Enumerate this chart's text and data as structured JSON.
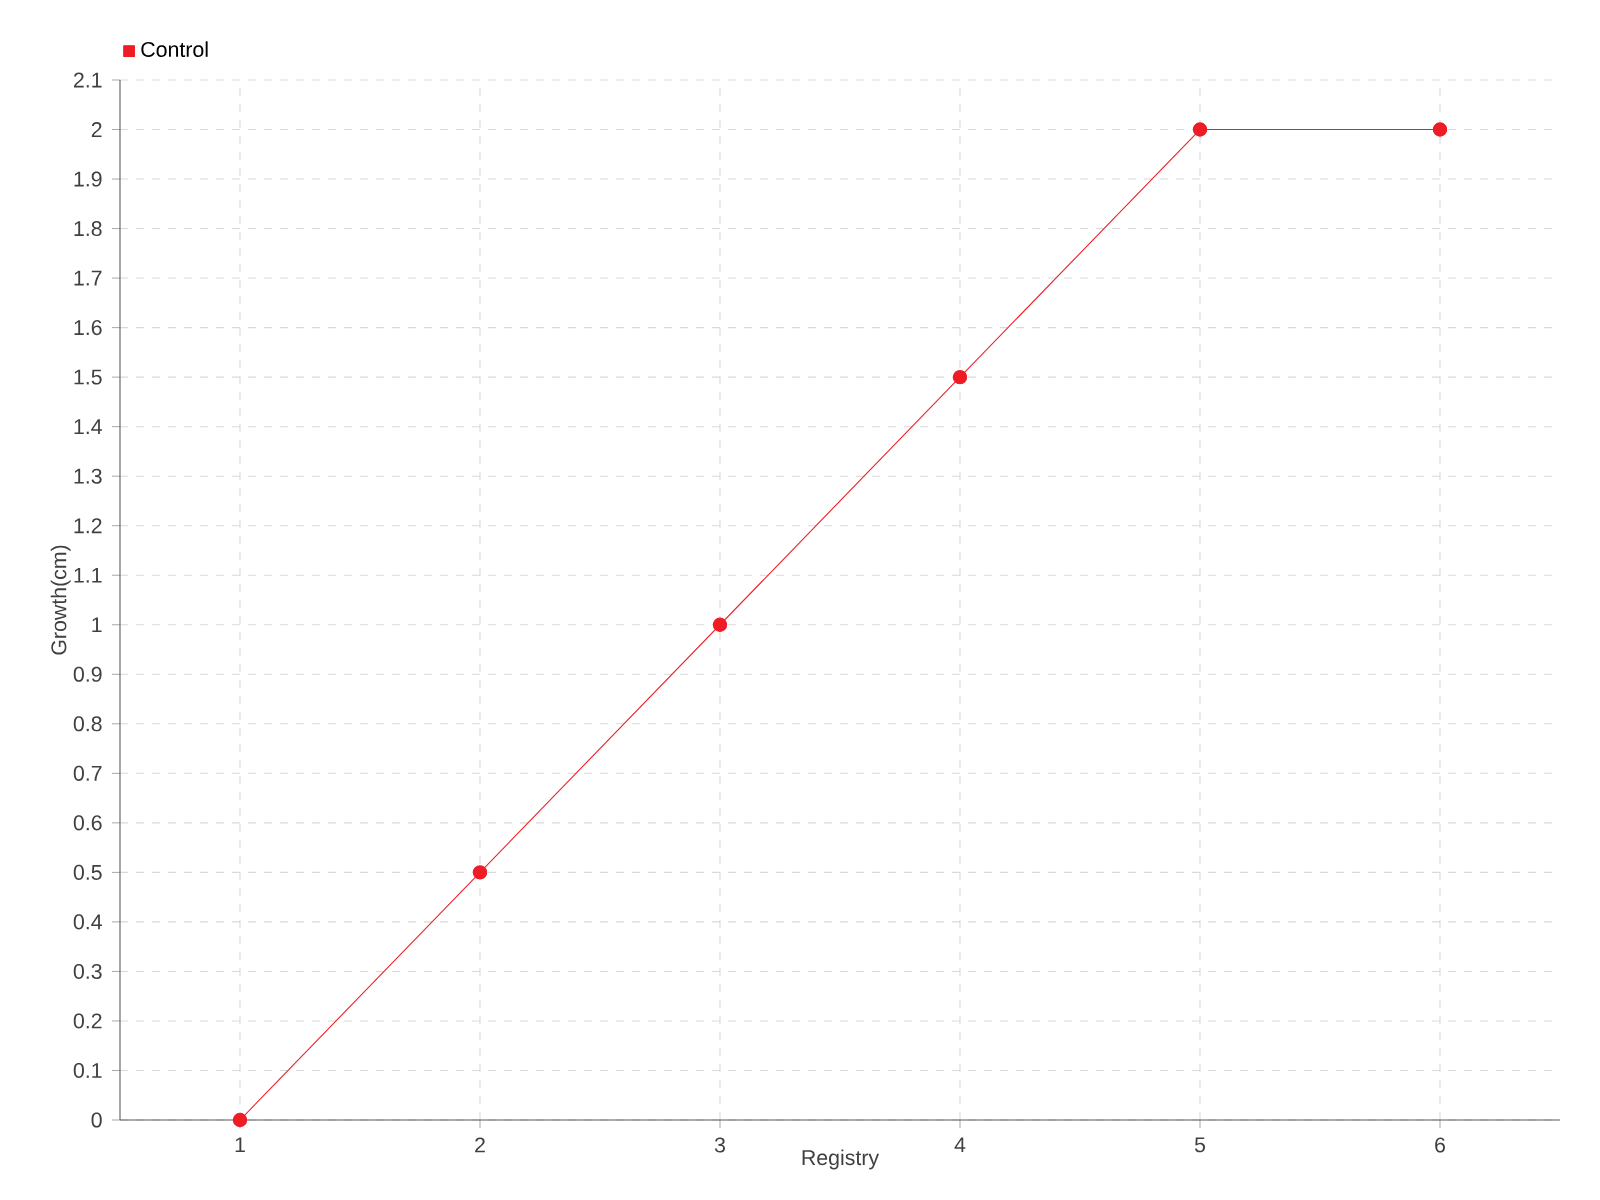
{
  "chart_data": {
    "type": "line",
    "xlabel": "Registry",
    "ylabel": "Growth(cm)",
    "x": [
      1,
      2,
      3,
      4,
      5,
      6
    ],
    "series": [
      {
        "name": "Control",
        "color": "#ee1c25",
        "values": [
          0,
          0.5,
          1,
          1.5,
          2,
          2
        ]
      }
    ],
    "xlim": [
      0.5,
      6.5
    ],
    "xticks": [
      1,
      2,
      3,
      4,
      5,
      6
    ],
    "ylim": [
      0,
      2.1
    ],
    "yticks": [
      0,
      0.1,
      0.2,
      0.3,
      0.4,
      0.5,
      0.6,
      0.7,
      0.8,
      0.9,
      1,
      1.1,
      1.2,
      1.3,
      1.4,
      1.5,
      1.6,
      1.7,
      1.8,
      1.9,
      2,
      2.1
    ],
    "grid": true,
    "legend": "top left",
    "marker": "circle",
    "line_style": "solid"
  }
}
